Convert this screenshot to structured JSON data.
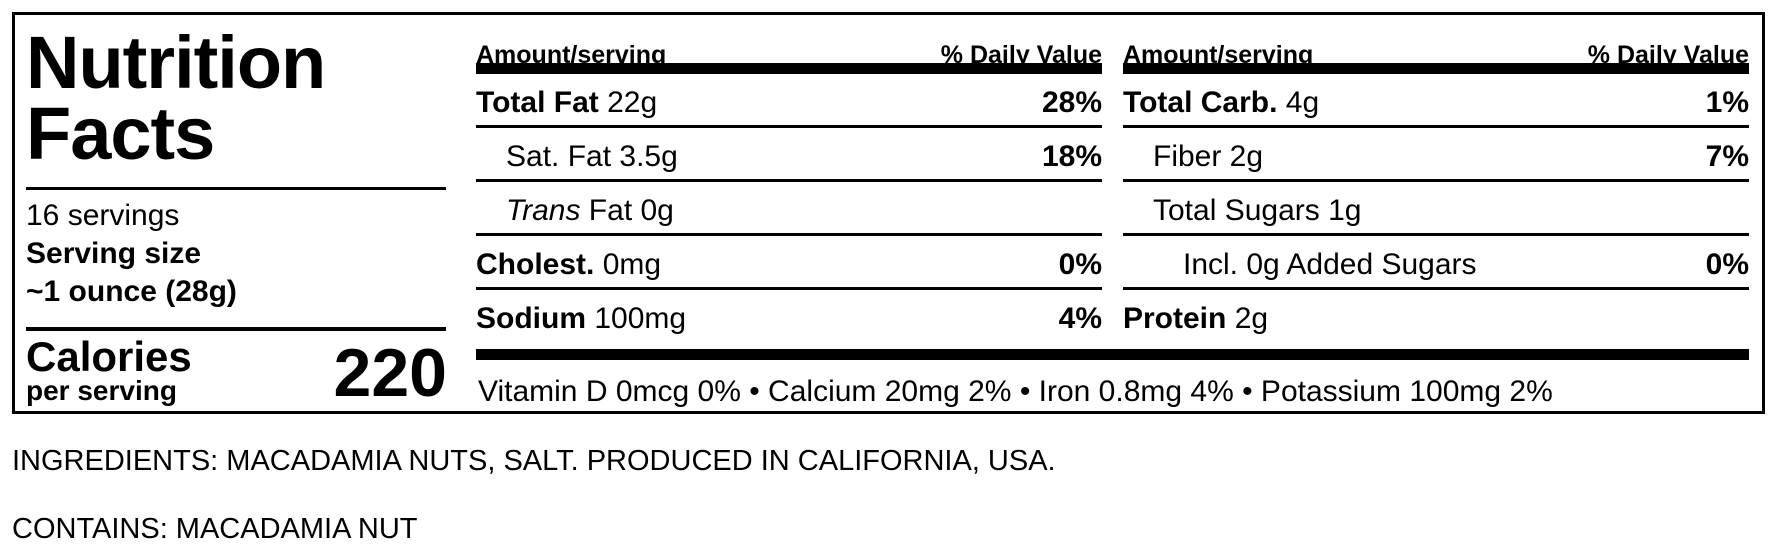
{
  "label": {
    "title_line1": "Nutrition",
    "title_line2": "Facts",
    "servings": "16 servings",
    "serving_size_label": "Serving size",
    "serving_size_value": "~1 ounce (28g)",
    "calories_label": "Calories",
    "calories_sub": "per serving",
    "calories_value": "220",
    "header_amount": "Amount/serving",
    "header_dv": "% Daily Value",
    "col1": {
      "total_fat": {
        "name": "Total Fat",
        "amount": "22g",
        "pct": "28%"
      },
      "sat_fat": {
        "name": "Sat. Fat 3.5g",
        "pct": "18%"
      },
      "trans_fat": {
        "name_italic": "Trans",
        "name_rest": " Fat 0g"
      },
      "cholest": {
        "name": "Cholest.",
        "amount": "0mg",
        "pct": "0%"
      },
      "sodium": {
        "name": "Sodium",
        "amount": "100mg",
        "pct": "4%"
      }
    },
    "col2": {
      "total_carb": {
        "name": "Total Carb.",
        "amount": "4g",
        "pct": "1%"
      },
      "fiber": {
        "name": "Fiber 2g",
        "pct": "7%"
      },
      "total_sugars": {
        "name": "Total Sugars 1g"
      },
      "added_sugars": {
        "name": "Incl. 0g Added Sugars",
        "pct": "0%"
      },
      "protein": {
        "name": "Protein",
        "amount": "2g"
      }
    },
    "vitamins": "Vitamin D 0mcg 0% • Calcium 20mg 2% • Iron 0.8mg 4% • Potassium 100mg 2%"
  },
  "ingredients": "INGREDIENTS: MACADAMIA NUTS, SALT. PRODUCED IN CALIFORNIA, USA.",
  "contains": "CONTAINS: MACADAMIA NUT"
}
